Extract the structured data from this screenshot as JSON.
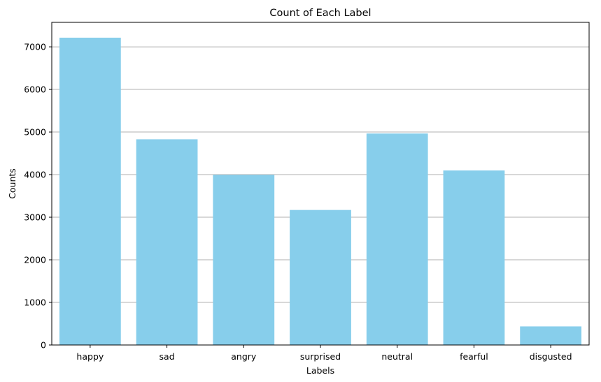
{
  "chart_data": {
    "type": "bar",
    "title": "Count of Each Label",
    "xlabel": "Labels",
    "ylabel": "Counts",
    "categories": [
      "happy",
      "sad",
      "angry",
      "surprised",
      "neutral",
      "fearful",
      "disgusted"
    ],
    "values": [
      7215,
      4830,
      3995,
      3170,
      4965,
      4097,
      436
    ],
    "ylim": [
      0,
      7575
    ],
    "yticks": [
      0,
      1000,
      2000,
      3000,
      4000,
      5000,
      6000,
      7000
    ],
    "grid": "y-axis",
    "bar_color": "#87CEEB",
    "grid_color": "#b0b0b0",
    "axis_color": "#000000"
  }
}
